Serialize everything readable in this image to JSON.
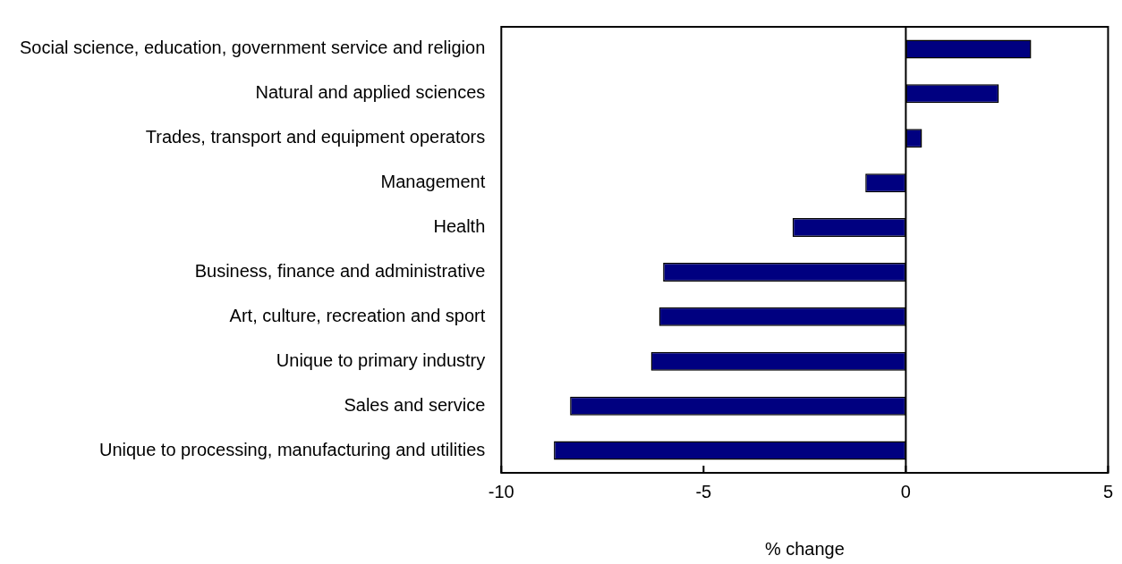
{
  "chart_data": {
    "type": "bar",
    "orientation": "horizontal",
    "xlabel": "% change",
    "categories": [
      "Social science, education, government service and religion",
      "Natural and applied sciences",
      "Trades, transport and equipment operators",
      "Management",
      "Health",
      "Business, finance and administrative",
      "Art, culture, recreation and sport",
      "Unique to primary industry",
      "Sales and service",
      "Unique to processing, manufacturing and utilities"
    ],
    "values": [
      3.1,
      2.3,
      0.4,
      -1.0,
      -2.8,
      -6.0,
      -6.1,
      -6.3,
      -8.3,
      -8.7
    ],
    "color": "#000080",
    "xlim": [
      -10,
      5
    ],
    "xticks": [
      -10,
      -5,
      0,
      5
    ],
    "ref_lines": [
      {
        "axis": "x",
        "value": 0
      }
    ]
  }
}
